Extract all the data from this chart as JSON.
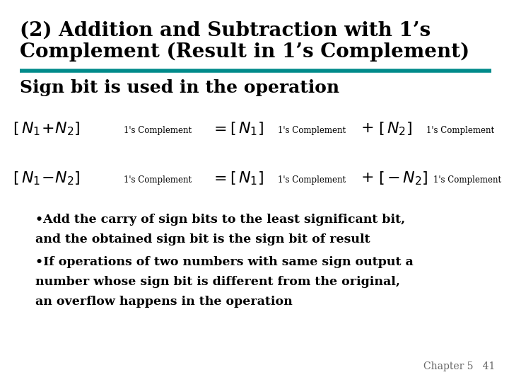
{
  "bg_color": "#ffffff",
  "title_line1": "(2) Addition and Subtraction with 1’s",
  "title_line2": "Complement (Result in 1’s Complement)",
  "title_color": "#000000",
  "title_fontsize": 20,
  "rule_color": "#008B8B",
  "subtitle": "Sign bit is used in the operation",
  "subtitle_fontsize": 18,
  "subtitle_color": "#000000",
  "bullet1_line1": "•Add the carry of sign bits to the least significant bit,",
  "bullet1_line2": "and the obtained sign bit is the sign bit of result",
  "bullet2_line1": "•If operations of two numbers with same sign output a",
  "bullet2_line2": "number whose sign bit is different from the original,",
  "bullet2_line3": "an overflow happens in the operation",
  "bullet_fontsize": 12.5,
  "bullet_color": "#000000",
  "footer": "Chapter 5   41",
  "footer_fontsize": 10,
  "footer_color": "#666666"
}
